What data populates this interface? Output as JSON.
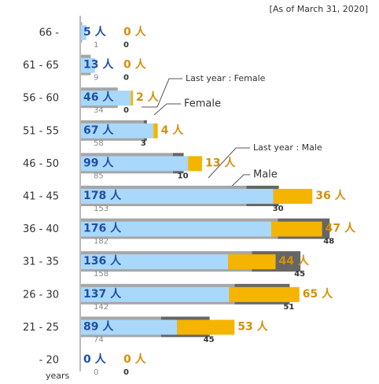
{
  "chart_data": {
    "type": "bar",
    "orientation": "horizontal",
    "stacked": true,
    "note": "[As of March 31, 2020]",
    "annotations": [
      "Last year : Female",
      "Female",
      "Last year : Male",
      "Male"
    ],
    "axis_label": "years",
    "categories": [
      "66 -",
      "61 - 65",
      "56 - 60",
      "51 - 55",
      "46 - 50",
      "41 - 45",
      "36 - 40",
      "31 - 35",
      "26 - 30",
      "21 - 25",
      "- 20"
    ],
    "series": [
      {
        "name": "Male",
        "color": "#a9d8fb",
        "values": [
          5,
          13,
          46,
          67,
          99,
          178,
          176,
          136,
          137,
          89,
          0
        ],
        "value_labels": [
          "5 人",
          "13 人",
          "46 人",
          "67 人",
          "99 人",
          "178 人",
          "176 人",
          "136 人",
          "137 人",
          "89 人",
          "0 人"
        ]
      },
      {
        "name": "Female",
        "color": "#f5b400",
        "values": [
          0,
          0,
          2,
          4,
          13,
          36,
          47,
          44,
          65,
          53,
          0
        ],
        "value_labels": [
          "0 人",
          "0 人",
          "2 人",
          "4 人",
          "13 人",
          "36 人",
          "47 人",
          "44 人",
          "65 人",
          "53 人",
          "0 人"
        ]
      },
      {
        "name": "Last year : Male",
        "color": "#a6a6a6",
        "values": [
          1,
          9,
          34,
          58,
          85,
          153,
          182,
          158,
          142,
          74,
          0
        ]
      },
      {
        "name": "Last year : Female",
        "color": "#666666",
        "values": [
          0,
          0,
          0,
          3,
          10,
          30,
          48,
          45,
          51,
          45,
          0
        ]
      }
    ]
  }
}
